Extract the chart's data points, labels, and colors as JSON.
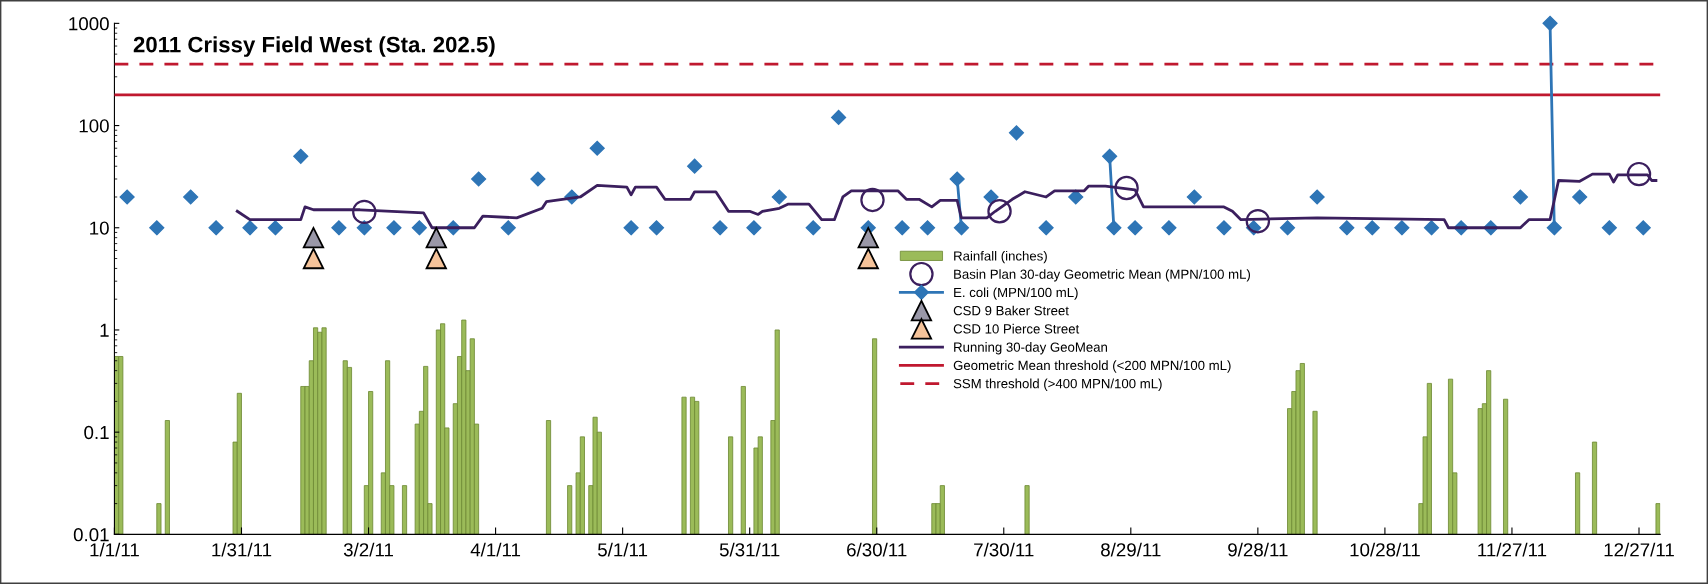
{
  "chart_data": {
    "type": "line",
    "title": "2011 Crissy Field West (Sta. 202.5)",
    "xlim": [
      "2011-01-01",
      "2012-01-01"
    ],
    "xticks": [
      {
        "value": "2011-01-01",
        "label": "1/1/11"
      },
      {
        "value": "2011-01-31",
        "label": "1/31/11"
      },
      {
        "value": "2011-03-02",
        "label": "3/2/11"
      },
      {
        "value": "2011-04-01",
        "label": "4/1/11"
      },
      {
        "value": "2011-05-01",
        "label": "5/1/11"
      },
      {
        "value": "2011-05-31",
        "label": "5/31/11"
      },
      {
        "value": "2011-06-30",
        "label": "6/30/11"
      },
      {
        "value": "2011-07-30",
        "label": "7/30/11"
      },
      {
        "value": "2011-08-29",
        "label": "8/29/11"
      },
      {
        "value": "2011-09-28",
        "label": "9/28/11"
      },
      {
        "value": "2011-10-28",
        "label": "10/28/11"
      },
      {
        "value": "2011-11-27",
        "label": "11/27/11"
      },
      {
        "value": "2011-12-27",
        "label": "12/27/11"
      }
    ],
    "ylim": [
      0.01,
      1000
    ],
    "yticks": [
      0.01,
      0.1,
      1,
      10,
      100,
      1000
    ],
    "log": true,
    "grid": false,
    "legend": "center",
    "series": [
      {
        "name": "Rainfall (inches)",
        "type": "bar",
        "color": "#9bbb59",
        "x": [
          "2011-01-01",
          "2011-01-02",
          "2011-01-11",
          "2011-01-13",
          "2011-01-29",
          "2011-01-30",
          "2011-02-14",
          "2011-02-15",
          "2011-02-16",
          "2011-02-17",
          "2011-02-18",
          "2011-02-19",
          "2011-02-24",
          "2011-02-25",
          "2011-03-01",
          "2011-03-02",
          "2011-03-05",
          "2011-03-06",
          "2011-03-07",
          "2011-03-10",
          "2011-03-13",
          "2011-03-14",
          "2011-03-15",
          "2011-03-16",
          "2011-03-18",
          "2011-03-19",
          "2011-03-20",
          "2011-03-22",
          "2011-03-23",
          "2011-03-24",
          "2011-03-25",
          "2011-03-26",
          "2011-03-27",
          "2011-04-13",
          "2011-04-18",
          "2011-04-20",
          "2011-04-21",
          "2011-04-23",
          "2011-04-24",
          "2011-04-25",
          "2011-05-15",
          "2011-05-17",
          "2011-05-18",
          "2011-05-26",
          "2011-05-29",
          "2011-06-01",
          "2011-06-02",
          "2011-06-05",
          "2011-06-06",
          "2011-06-29",
          "2011-07-13",
          "2011-07-14",
          "2011-07-15",
          "2011-08-04",
          "2011-10-05",
          "2011-10-06",
          "2011-10-07",
          "2011-10-08",
          "2011-10-11",
          "2011-11-05",
          "2011-11-06",
          "2011-11-07",
          "2011-11-12",
          "2011-11-13",
          "2011-11-19",
          "2011-11-20",
          "2011-11-21",
          "2011-11-25",
          "2011-12-12",
          "2011-12-16",
          "2011-12-31"
        ],
        "values": [
          0.55,
          0.55,
          0.02,
          0.13,
          0.08,
          0.24,
          0.28,
          0.28,
          0.5,
          1.05,
          0.95,
          1.05,
          0.5,
          0.43,
          0.03,
          0.25,
          0.04,
          0.5,
          0.03,
          0.03,
          0.12,
          0.16,
          0.44,
          0.02,
          1.0,
          1.15,
          0.11,
          0.19,
          0.55,
          1.25,
          0.4,
          0.82,
          0.12,
          0.13,
          0.03,
          0.04,
          0.09,
          0.03,
          0.14,
          0.1,
          0.22,
          0.22,
          0.2,
          0.09,
          0.28,
          0.07,
          0.09,
          0.13,
          1.0,
          0.82,
          0.02,
          0.02,
          0.03,
          0.03,
          0.17,
          0.25,
          0.4,
          0.47,
          0.16,
          0.02,
          0.09,
          0.3,
          0.33,
          0.04,
          0.17,
          0.19,
          0.4,
          0.21,
          0.04,
          0.08,
          0.02
        ]
      },
      {
        "name": "Basin Plan 30-day Geometric Mean (MPN/100 mL)",
        "type": "scatter",
        "marker": "circle",
        "color": "#3b1f5e",
        "x": [
          "2011-03-01",
          "2011-06-29",
          "2011-07-29",
          "2011-08-28",
          "2011-09-28",
          "2011-12-27"
        ],
        "values": [
          14.3,
          18.7,
          14.5,
          24.5,
          11.6,
          33.5
        ]
      },
      {
        "name": "E. coli (MPN/100 mL)",
        "marker": "diamond",
        "color": "#2e75b6",
        "x": [
          "2011-01-04",
          null,
          "2011-01-11",
          null,
          "2011-01-19",
          null,
          "2011-01-25",
          null,
          "2011-02-02",
          null,
          "2011-02-08",
          null,
          "2011-02-14",
          null,
          "2011-02-23",
          null,
          "2011-03-01",
          null,
          "2011-03-08",
          null,
          "2011-03-14",
          null,
          "2011-03-22",
          null,
          "2011-03-28",
          null,
          "2011-04-04",
          null,
          "2011-04-11",
          null,
          "2011-04-19",
          null,
          "2011-04-25",
          null,
          "2011-05-03",
          null,
          "2011-05-09",
          null,
          "2011-05-18",
          null,
          "2011-05-24",
          null,
          "2011-06-01",
          null,
          "2011-06-07",
          null,
          "2011-06-15",
          null,
          "2011-06-21",
          null,
          "2011-06-28",
          null,
          "2011-07-06",
          null,
          "2011-07-12",
          null,
          "2011-07-19",
          "2011-07-20",
          null,
          "2011-07-27",
          null,
          "2011-08-02",
          null,
          "2011-08-09",
          null,
          "2011-08-16",
          null,
          "2011-08-24",
          "2011-08-25",
          null,
          "2011-08-30",
          null,
          "2011-09-07",
          null,
          "2011-09-13",
          null,
          "2011-09-20",
          null,
          "2011-09-27",
          null,
          "2011-10-05",
          null,
          "2011-10-12",
          null,
          "2011-10-19",
          null,
          "2011-10-25",
          null,
          "2011-11-01",
          null,
          "2011-11-08",
          null,
          "2011-11-15",
          null,
          "2011-11-22",
          null,
          "2011-11-29",
          null,
          "2011-12-06",
          "2011-12-07",
          null,
          "2011-12-13",
          null,
          "2011-12-20",
          null,
          "2011-12-28"
        ],
        "values": [
          20,
          null,
          10,
          null,
          20,
          null,
          10,
          null,
          10,
          null,
          10,
          null,
          50,
          null,
          10,
          null,
          10,
          null,
          10,
          null,
          10,
          null,
          10,
          null,
          30,
          null,
          10,
          null,
          30,
          null,
          20,
          null,
          60,
          null,
          10,
          null,
          10,
          null,
          40,
          null,
          10,
          null,
          10,
          null,
          20,
          null,
          10,
          null,
          120,
          null,
          10,
          null,
          10,
          null,
          10,
          null,
          30,
          10,
          null,
          20,
          null,
          85,
          null,
          10,
          null,
          20,
          null,
          50,
          10,
          null,
          10,
          null,
          10,
          null,
          20,
          null,
          10,
          null,
          10,
          null,
          10,
          null,
          20,
          null,
          10,
          null,
          10,
          null,
          10,
          null,
          10,
          null,
          10,
          null,
          10,
          null,
          20,
          null,
          1000,
          10,
          null,
          20,
          null,
          10,
          null,
          10
        ]
      },
      {
        "name": "CSD 9 Baker Street",
        "type": "scatter",
        "marker": "triangle",
        "color": "#9a98a8",
        "x": [
          "2011-02-17",
          "2011-03-18",
          "2011-06-28"
        ],
        "values": [
          8,
          8,
          8
        ]
      },
      {
        "name": "CSD 10 Pierce Street",
        "type": "scatter",
        "marker": "triangle",
        "color": "#f5c39a",
        "x": [
          "2011-02-17",
          "2011-03-18",
          "2011-06-28"
        ],
        "values": [
          5,
          5,
          5
        ]
      },
      {
        "name": "Running 30-day GeoMean",
        "marker": "none",
        "color": "#3b1f5e",
        "x": [
          "2011-01-30",
          "2011-02-02",
          "2011-02-14",
          "2011-02-15",
          "2011-02-17",
          "2011-02-28",
          "2011-03-15",
          "2011-03-17",
          "2011-03-27",
          "2011-03-29",
          "2011-04-06",
          "2011-04-12",
          "2011-04-13",
          "2011-04-21",
          "2011-04-25",
          "2011-05-02",
          "2011-05-03",
          "2011-05-04",
          "2011-05-09",
          "2011-05-11",
          "2011-05-17",
          "2011-05-18",
          "2011-05-23",
          "2011-05-26",
          "2011-05-31",
          "2011-06-02",
          "2011-06-03",
          "2011-06-07",
          "2011-06-09",
          "2011-06-14",
          "2011-06-17",
          "2011-06-20",
          "2011-06-22",
          "2011-06-24",
          "2011-07-05",
          "2011-07-07",
          "2011-07-10",
          "2011-07-13",
          "2011-07-15",
          "2011-07-19",
          "2011-07-20",
          "2011-07-26",
          "2011-07-28",
          "2011-08-01",
          "2011-08-04",
          "2011-08-09",
          "2011-08-11",
          "2011-08-18",
          "2011-08-19",
          "2011-08-23",
          "2011-08-30",
          "2011-09-01",
          "2011-09-06",
          "2011-09-20",
          "2011-09-22",
          "2011-09-24",
          "2011-10-12",
          "2011-11-11",
          "2011-11-12",
          "2011-11-29",
          "2011-12-01",
          "2011-12-06",
          "2011-12-08",
          "2011-12-13",
          "2011-12-16",
          "2011-12-20",
          "2011-12-21",
          "2011-12-22",
          "2011-12-29",
          "2011-12-30",
          "2011-12-31"
        ],
        "values": [
          14.5,
          12,
          12,
          16,
          15,
          15,
          14,
          10,
          10,
          13,
          12.5,
          15.5,
          18,
          20,
          26,
          25,
          21,
          25,
          25,
          19,
          19,
          22.5,
          22.5,
          14.5,
          14.5,
          13.5,
          14.5,
          15.5,
          17,
          17,
          12,
          12,
          20,
          23,
          23,
          19,
          19,
          16,
          18.5,
          18.5,
          12.5,
          12.5,
          14.5,
          19,
          22.5,
          20,
          23,
          23,
          25.5,
          25.5,
          23.5,
          16,
          16,
          16,
          14.5,
          12,
          12.5,
          12,
          10,
          10,
          12,
          12,
          29,
          28.5,
          33.5,
          33.5,
          28,
          33,
          33,
          29,
          29
        ]
      }
    ],
    "ref_lines": [
      {
        "axis": "y",
        "value": 200,
        "label": "Geometric Mean threshold (<200 MPN/100 mL)",
        "color": "#c0182f",
        "line_style": "solid"
      },
      {
        "axis": "y",
        "value": 400,
        "label": "SSM threshold (>400 MPN/100 mL)",
        "color": "#c0182f",
        "line_style": "dashed"
      }
    ]
  }
}
